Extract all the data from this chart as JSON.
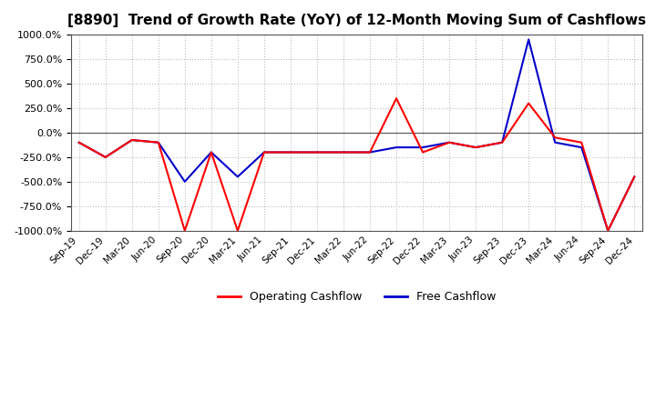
{
  "title": "[8890]  Trend of Growth Rate (YoY) of 12-Month Moving Sum of Cashflows",
  "title_fontsize": 11,
  "ylim": [
    -1000,
    1000
  ],
  "yticks": [
    1000,
    750,
    500,
    250,
    0,
    -250,
    -500,
    -750,
    -1000
  ],
  "x_labels": [
    "Sep-19",
    "Dec-19",
    "Mar-20",
    "Jun-20",
    "Sep-20",
    "Dec-20",
    "Mar-21",
    "Jun-21",
    "Sep-21",
    "Dec-21",
    "Mar-22",
    "Jun-22",
    "Sep-22",
    "Dec-22",
    "Mar-23",
    "Jun-23",
    "Sep-23",
    "Dec-23",
    "Mar-24",
    "Jun-24",
    "Sep-24",
    "Dec-24"
  ],
  "operating_cashflow": [
    -100,
    -250,
    -75,
    -100,
    -1000,
    -200,
    -1000,
    -200,
    -200,
    -200,
    -200,
    -200,
    350,
    -200,
    -100,
    -150,
    -100,
    300,
    -50,
    -100,
    -1000,
    -450
  ],
  "free_cashflow": [
    -100,
    -250,
    -75,
    -100,
    -500,
    -200,
    -450,
    -200,
    -200,
    -200,
    -200,
    -200,
    -150,
    -150,
    -100,
    -150,
    -100,
    950,
    -100,
    -150,
    -1000,
    -450
  ],
  "operating_color": "#ff0000",
  "free_color": "#0000cc",
  "background_color": "#ffffff",
  "grid_color": "#bbbbbb",
  "legend_labels": [
    "Operating Cashflow",
    "Free Cashflow"
  ],
  "line_width": 1.5
}
